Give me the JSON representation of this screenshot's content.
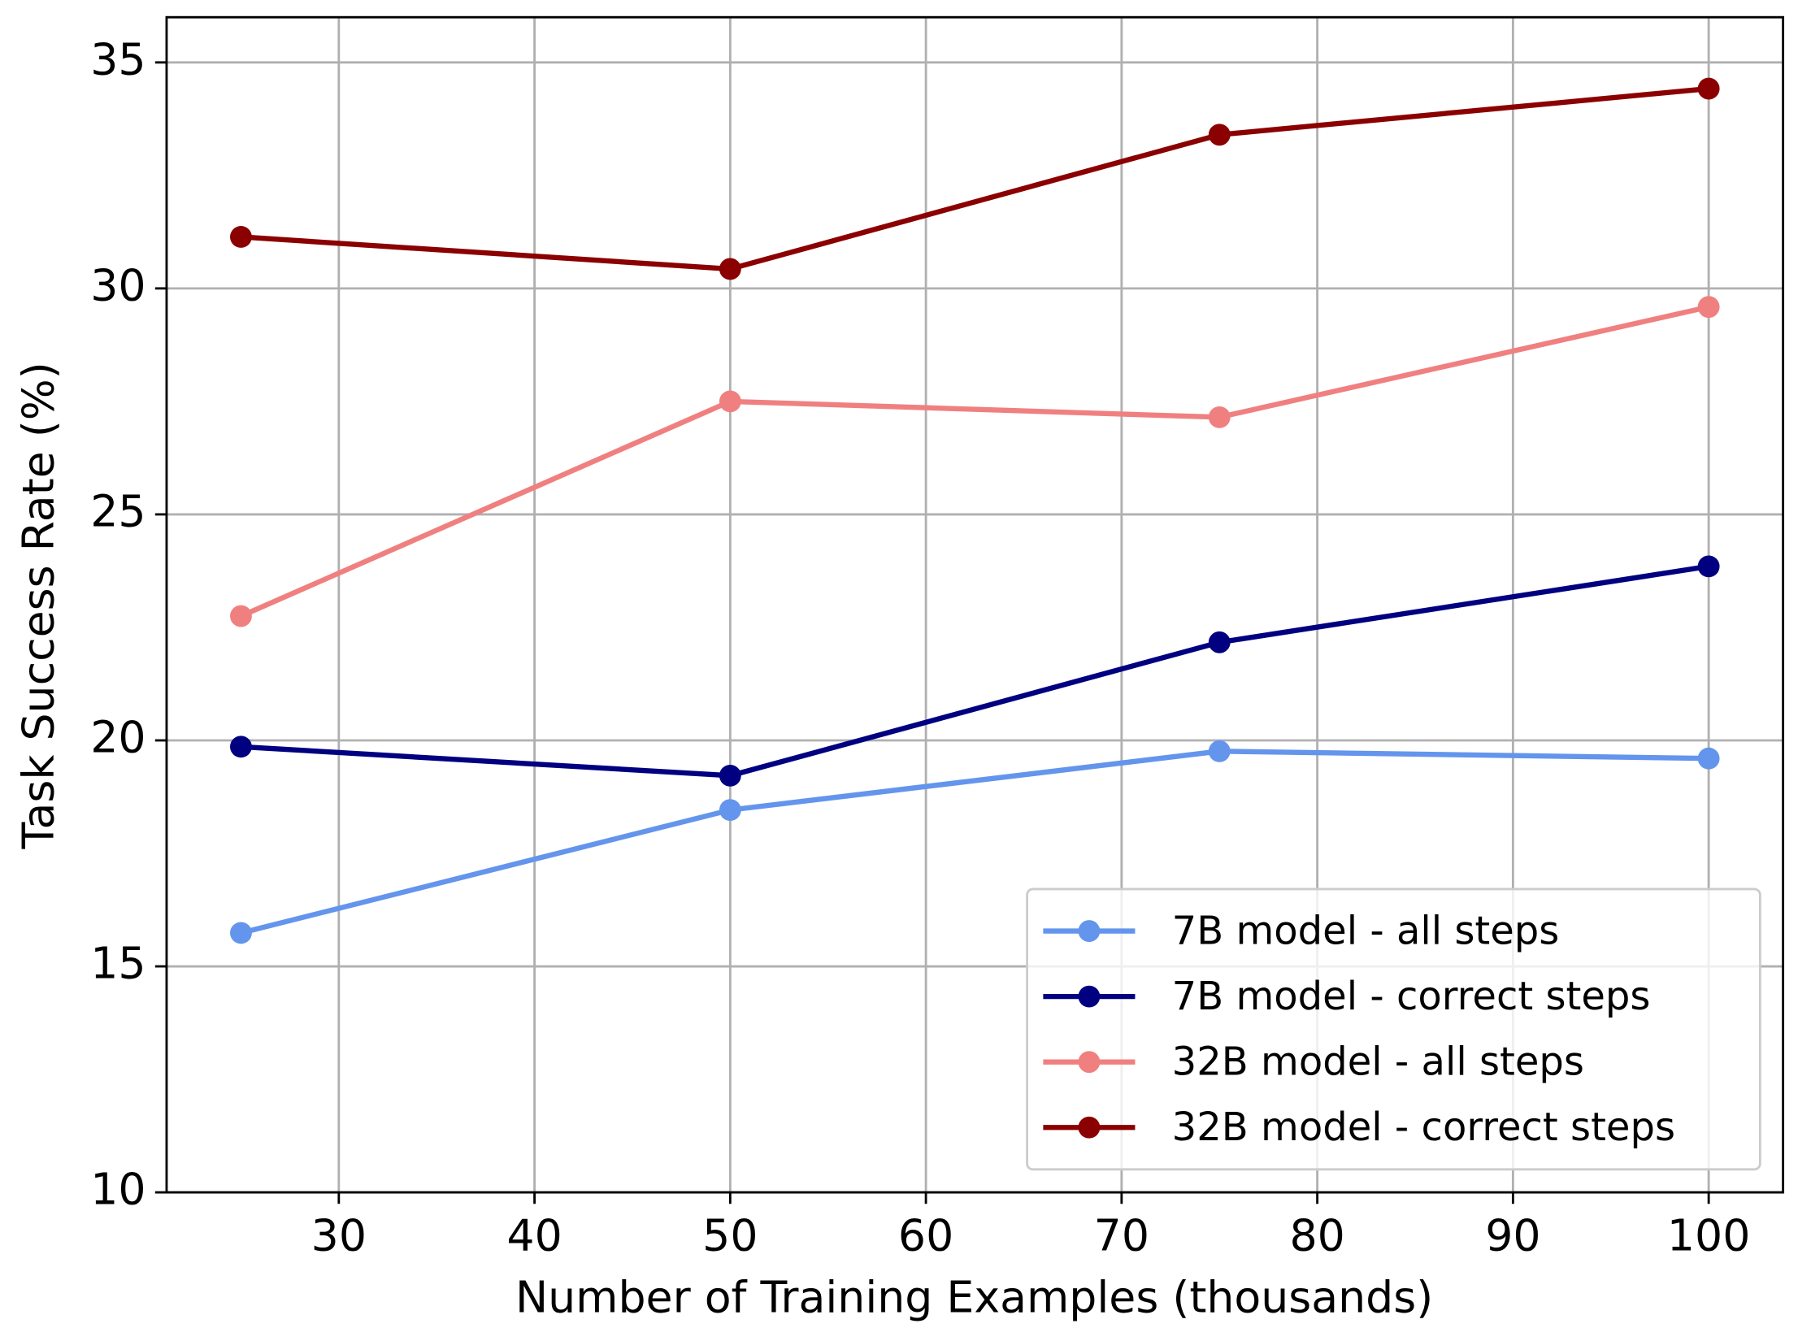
{
  "chart_data": {
    "type": "line",
    "xlabel": "Number of Training Examples (thousands)",
    "ylabel": "Task Success Rate (%)",
    "x": [
      25,
      50,
      75,
      100
    ],
    "series": [
      {
        "name": "7B model - all steps",
        "color": "#6495ed",
        "values": [
          15.74,
          18.46,
          19.76,
          19.6
        ]
      },
      {
        "name": "7B model - correct steps",
        "color": "#000080",
        "values": [
          19.86,
          19.22,
          22.17,
          23.85
        ]
      },
      {
        "name": "32B model - all steps",
        "color": "#f08080",
        "values": [
          22.75,
          27.5,
          27.15,
          29.59
        ]
      },
      {
        "name": "32B model - correct steps",
        "color": "#8b0000",
        "values": [
          31.14,
          30.43,
          33.4,
          34.42
        ]
      }
    ],
    "xlim": [
      21.2,
      103.8
    ],
    "xticks": [
      30,
      40,
      50,
      60,
      70,
      80,
      90,
      100
    ],
    "ylim": [
      10,
      36
    ],
    "yticks": [
      10,
      15,
      20,
      25,
      30,
      35
    ],
    "grid": true,
    "legend": "lower right"
  }
}
